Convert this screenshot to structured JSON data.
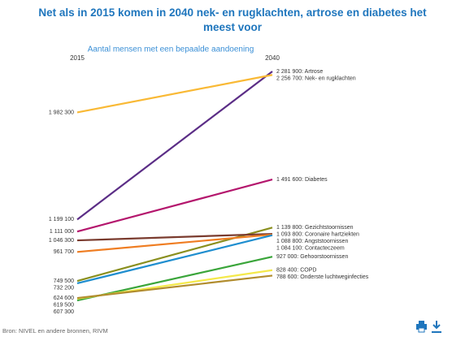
{
  "chart_data": {
    "type": "slope",
    "title": "Net als in 2015 komen in 2040 nek- en rugklachten, artrose en diabetes het meest voor",
    "subtitle": "Aantal mensen met een bepaalde aandoening",
    "categories": [
      "2015",
      "2040"
    ],
    "source": "Bron: NIVEL en andere bronnen, RIVM",
    "series": [
      {
        "color": "#5b2d86",
        "values": [
          1199100,
          2281900
        ],
        "value_labels": [
          "1 199 100",
          "2 281 900: Artrose"
        ]
      },
      {
        "color": "#f9b935",
        "values": [
          1982300,
          2256700
        ],
        "value_labels": [
          "1 982 300",
          "2 256 700: Nek- en rugklachten"
        ]
      },
      {
        "color": "#b4166d",
        "values": [
          1111000,
          1491600
        ],
        "value_labels": [
          "1 111 000",
          "1 491 600: Diabetes"
        ]
      },
      {
        "color": "#8a8f1e",
        "values": [
          749500,
          1139800
        ],
        "value_labels": [
          "749 500",
          "1 139 800: Gezichtstoornissen"
        ]
      },
      {
        "color": "#7a3b2e",
        "values": [
          1046300,
          1093800
        ],
        "value_labels": [
          "1 046 300",
          "1 093 800: Coronaire hartziekten"
        ]
      },
      {
        "color": "#ef7d22",
        "values": [
          961700,
          1088800
        ],
        "value_labels": [
          "961 700",
          "1 088 800: Angststoornissen"
        ]
      },
      {
        "color": "#1f8ecf",
        "values": [
          732200,
          1084100
        ],
        "value_labels": [
          "732 200",
          "1 084 100: Contacteczeem"
        ]
      },
      {
        "color": "#3aa53a",
        "values": [
          607300,
          927000
        ],
        "value_labels": [
          "607 300",
          "927 000: Gehoorstoornissen"
        ]
      },
      {
        "color": "#f4e94a",
        "values": [
          619500,
          828400
        ],
        "value_labels": [
          "619 500",
          "828 400: COPD"
        ]
      },
      {
        "color": "#b18c2e",
        "values": [
          624600,
          788600
        ],
        "value_labels": [
          "624 600",
          "788 600: Onderste luchtweginfecties"
        ]
      }
    ]
  }
}
